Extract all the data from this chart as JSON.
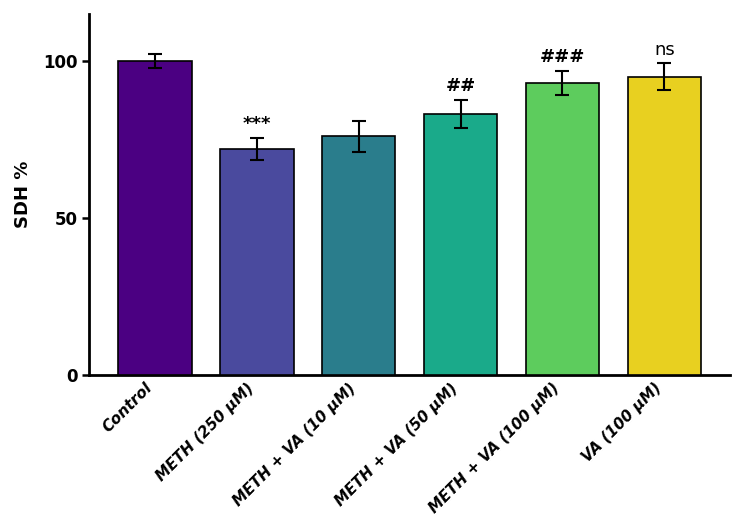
{
  "categories": [
    "Control",
    "METH (250 μM)",
    "METH + VA (10 μM)",
    "METH + VA (50 μM)",
    "METH + VA (100 μM)",
    "VA (100 μM)"
  ],
  "values": [
    100.0,
    72.0,
    76.0,
    83.0,
    93.0,
    95.0
  ],
  "errors": [
    2.2,
    3.5,
    5.0,
    4.5,
    3.8,
    4.2
  ],
  "bar_colors": [
    "#4b0082",
    "#4a4a9e",
    "#2a7d8c",
    "#1aaa8a",
    "#5dcc5d",
    "#e8d020"
  ],
  "ylabel": "SDH %",
  "ylim": [
    0,
    115
  ],
  "yticks": [
    0,
    50,
    100
  ],
  "annotations": [
    "",
    "***",
    "",
    "##",
    "###",
    "ns"
  ],
  "annotation_fontsize": 13,
  "bar_width": 0.72,
  "figsize": [
    7.44,
    5.3
  ],
  "dpi": 100,
  "background_color": "#ffffff",
  "spine_linewidth": 2.0,
  "tick_fontsize": 11,
  "ylabel_fontsize": 13,
  "label_rotation": -45
}
